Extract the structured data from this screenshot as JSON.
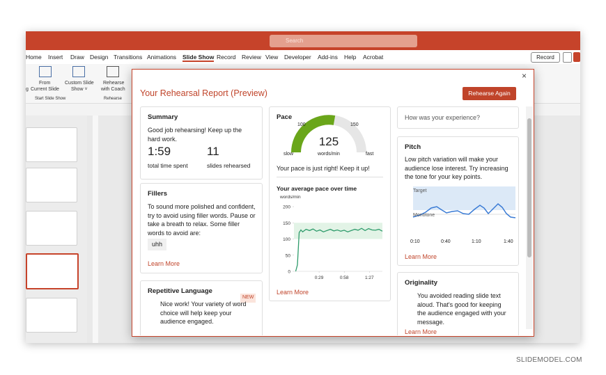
{
  "window": {
    "search": "Search",
    "tabs": [
      "Home",
      "Insert",
      "Draw",
      "Design",
      "Transitions",
      "Animations",
      "Slide Show",
      "Record",
      "Review",
      "View",
      "Developer",
      "Add-ins",
      "Help",
      "Acrobat"
    ],
    "record_button": "Record",
    "ribbon": {
      "clipped_label": "g",
      "from": "From",
      "current_slide": "Current Slide",
      "custom_1": "Custom Slide",
      "custom_2": "Show ˅",
      "rehearse_1": "Rehearse",
      "rehearse_2": "with Coach",
      "group_start": "Start Slide Show",
      "group_rehearse": "Rehearse"
    }
  },
  "report": {
    "title": "Your Rehearsal Report (Preview)",
    "button": "Rehearse Again",
    "close": "×",
    "summary": {
      "title": "Summary",
      "text": "Good job rehearsing! Keep up the hard work.",
      "time": "1:59",
      "time_label": "total time spent",
      "slides": "11",
      "slides_label": "slides rehearsed"
    },
    "fillers": {
      "title": "Fillers",
      "text": "To sound more polished and confident, try to avoid using filler words. Pause or take a breath to relax. Some filler words to avoid are:",
      "word": "uhh",
      "link": "Learn More"
    },
    "repetitive": {
      "title": "Repetitive Language",
      "badge": "NEW",
      "text": "Nice work! Your variety of word choice will help keep your audience engaged."
    },
    "pace": {
      "title": "Pace",
      "gauge_low": "100",
      "gauge_high": "150",
      "slow": "slow",
      "fast": "fast",
      "value": "125",
      "unit": "words/min",
      "message": "Your pace is just right! Keep it up!",
      "chart_title": "Your average pace over time",
      "chart": {
        "y_label": "words/min",
        "ylim": [
          0,
          200
        ],
        "yticks": [
          0,
          50,
          100,
          150,
          200
        ],
        "xlim": [
          0,
          102
        ],
        "xticks": [
          {
            "value": 29,
            "label": "0:29"
          },
          {
            "value": 58,
            "label": "0:58"
          },
          {
            "value": 87,
            "label": "1:27"
          }
        ],
        "target_range": [
          100,
          150
        ],
        "x": [
          2,
          4,
          6,
          8,
          10,
          14,
          18,
          22,
          26,
          30,
          34,
          38,
          42,
          46,
          50,
          54,
          58,
          62,
          66,
          70,
          74,
          78,
          82,
          86,
          90,
          94,
          98,
          102
        ],
        "values": [
          0,
          20,
          120,
          128,
          122,
          130,
          126,
          131,
          124,
          128,
          122,
          126,
          130,
          125,
          128,
          124,
          127,
          122,
          126,
          130,
          127,
          133,
          126,
          132,
          128,
          127,
          130,
          124
        ]
      },
      "link": "Learn More"
    },
    "experience": "How was your experience?",
    "pitch": {
      "title": "Pitch",
      "text": "Low pitch variation will make your audience lose interest. Try increasing the tone for your key points.",
      "target": "Target",
      "monotone": "Monotone",
      "ticks": [
        "0:10",
        "0:40",
        "1:10",
        "1:40"
      ],
      "link": "Learn More"
    },
    "originality": {
      "title": "Originality",
      "text": "You avoided reading slide text aloud. That's good for keeping the audience engaged with your message.",
      "link": "Learn More"
    }
  },
  "watermark": "SLIDEMODEL.COM"
}
